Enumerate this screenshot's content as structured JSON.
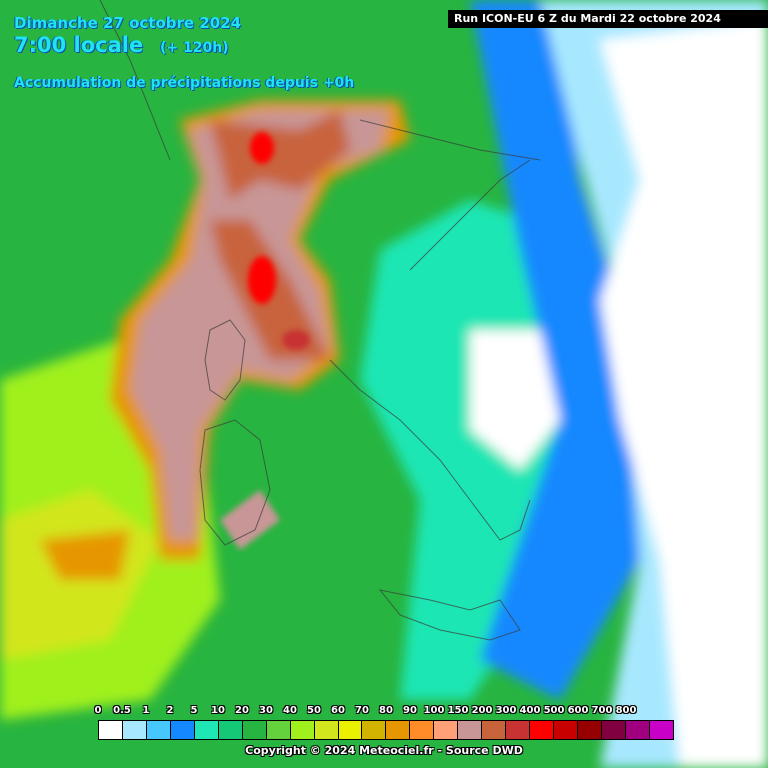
{
  "header": {
    "date": "Dimanche 27 octobre 2024",
    "time": "7:00 locale",
    "lead": "(+ 120h)",
    "product": "Accumulation de précipitations depuis +0h"
  },
  "run_label": "Run ICON-EU 6 Z du Mardi 22 octobre 2024",
  "legend": {
    "labels": [
      "0",
      "0.5",
      "1",
      "2",
      "5",
      "10",
      "20",
      "30",
      "40",
      "50",
      "60",
      "70",
      "80",
      "90",
      "100",
      "150",
      "200",
      "300",
      "400",
      "500",
      "600",
      "700",
      "800"
    ],
    "colors": [
      "#ffffff",
      "#a8e8ff",
      "#46c8ff",
      "#1488ff",
      "#1ee6b4",
      "#14c878",
      "#28b440",
      "#64d23c",
      "#a0f01e",
      "#d2e61e",
      "#eaf000",
      "#d2b400",
      "#e69600",
      "#ff8c28",
      "#ffa078",
      "#c89696",
      "#c8643c",
      "#c83232",
      "#ff0000",
      "#c80000",
      "#960000",
      "#800040",
      "#a00080",
      "#c800c8"
    ]
  },
  "copyright": "Copyright © 2024 Meteociel.fr - Source DWD"
}
